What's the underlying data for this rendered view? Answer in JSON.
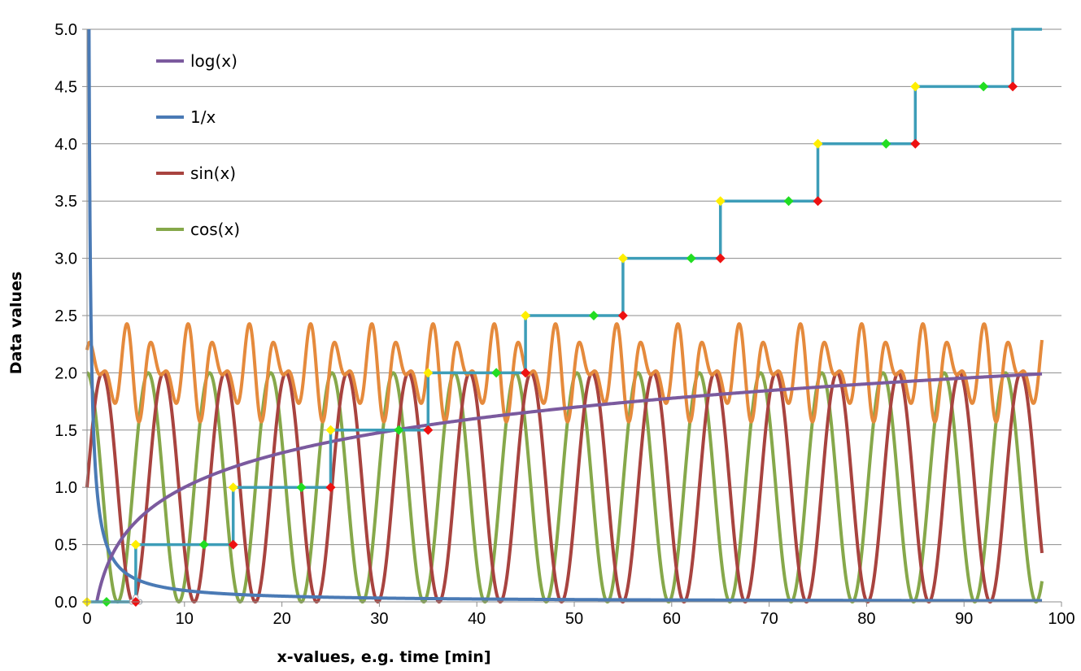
{
  "chart_data": {
    "type": "line",
    "xlabel": "x-values, e.g. time [min]",
    "ylabel": "Data values",
    "xlim": [
      0,
      100
    ],
    "ylim": [
      0,
      5
    ],
    "x_ticks": [
      "0",
      "10",
      "20",
      "30",
      "40",
      "50",
      "60",
      "70",
      "80",
      "90",
      "100"
    ],
    "y_ticks": [
      "0.0",
      "0.5",
      "1.0",
      "1.5",
      "2.0",
      "2.5",
      "3.0",
      "3.5",
      "4.0",
      "4.5",
      "5.0"
    ],
    "grid": "horizontal",
    "legend_position": "top-left",
    "legend": [
      {
        "label": "log(x)",
        "color": "#7b5a9e"
      },
      {
        "label": "1/x",
        "color": "#4a7ab5"
      },
      {
        "label": "sin(x)",
        "color": "#a8433f"
      },
      {
        "label": "cos(x)",
        "color": "#86a84a"
      }
    ],
    "series_colors": {
      "log": "#7b5a9e",
      "reciprocal": "#4a7ab5",
      "sin": "#a8433f",
      "cos": "#86a84a",
      "orange": "#e58a3c",
      "step": "#3d9db8"
    },
    "x_range": [
      0,
      98
    ],
    "step_series": {
      "x": [
        0,
        5,
        5,
        15,
        15,
        25,
        25,
        35,
        35,
        45,
        45,
        55,
        55,
        65,
        65,
        75,
        75,
        85,
        85,
        95,
        95,
        98
      ],
      "y": [
        0,
        0,
        0.5,
        0.5,
        1.0,
        1.0,
        1.5,
        1.5,
        2.0,
        2.0,
        2.5,
        2.5,
        3.0,
        3.0,
        3.5,
        3.5,
        4.0,
        4.0,
        4.5,
        4.5,
        5.0,
        5.0
      ]
    },
    "markers": {
      "yellow": {
        "color": "#ffee00",
        "x": [
          0,
          5,
          15,
          25,
          35,
          45,
          55,
          65,
          75,
          85
        ],
        "y": [
          0,
          0.5,
          1.0,
          1.5,
          2.0,
          2.5,
          3.0,
          3.5,
          4.0,
          4.5
        ]
      },
      "green": {
        "color": "#22dd22",
        "x": [
          2,
          12,
          22,
          32,
          42,
          52,
          62,
          72,
          82,
          92
        ],
        "y": [
          0,
          0.5,
          1.0,
          1.5,
          2.0,
          2.5,
          3.0,
          3.5,
          4.0,
          4.5
        ]
      },
      "red": {
        "color": "#ee1111",
        "x": [
          5,
          15,
          25,
          35,
          45,
          55,
          65,
          75,
          85,
          95
        ],
        "y": [
          0,
          0.5,
          1.0,
          1.5,
          2.0,
          2.5,
          3.0,
          3.5,
          4.0,
          4.5
        ]
      }
    }
  }
}
